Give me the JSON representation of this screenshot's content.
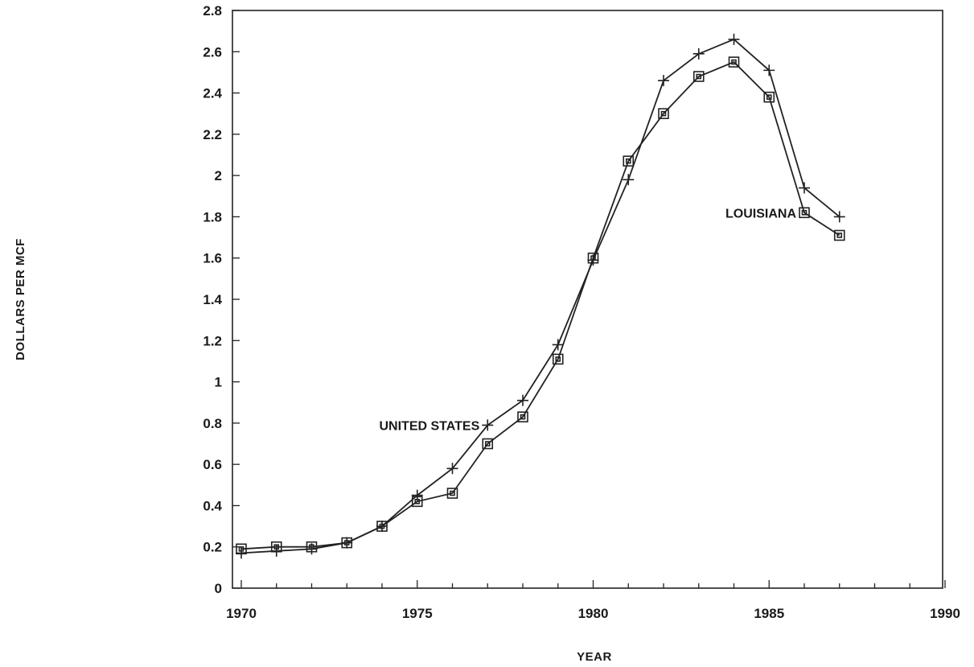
{
  "chart_data": {
    "type": "line",
    "title": "",
    "xlabel": "YEAR",
    "ylabel": "DOLLARS PER MCF",
    "xlim": [
      1970,
      1990
    ],
    "ylim": [
      0,
      2.8
    ],
    "x_ticks": [
      "1970",
      "1975",
      "1980",
      "1985",
      "1990"
    ],
    "y_ticks": [
      "0",
      "0.2",
      "0.4",
      "0.6",
      "0.8",
      "1",
      "1.2",
      "1.4",
      "1.6",
      "1.8",
      "2",
      "2.2",
      "2.4",
      "2.6",
      "2.8"
    ],
    "grid": false,
    "x": [
      1970,
      1971,
      1972,
      1973,
      1974,
      1975,
      1976,
      1977,
      1978,
      1979,
      1980,
      1981,
      1982,
      1983,
      1984,
      1985,
      1986,
      1987
    ],
    "series": [
      {
        "name": "UNITED STATES",
        "marker": "plus",
        "values": [
          0.17,
          0.18,
          0.19,
          0.22,
          0.3,
          0.45,
          0.58,
          0.79,
          0.91,
          1.18,
          1.59,
          1.98,
          2.46,
          2.59,
          2.66,
          2.51,
          1.94,
          1.8
        ]
      },
      {
        "name": "LOUISIANA",
        "marker": "square",
        "values": [
          0.19,
          0.2,
          0.2,
          0.22,
          0.3,
          0.42,
          0.46,
          0.7,
          0.83,
          1.11,
          1.6,
          2.07,
          2.3,
          2.48,
          2.55,
          2.38,
          1.82,
          1.71
        ]
      }
    ],
    "annotations": [
      {
        "text": "UNITED STATES",
        "series": "UNITED STATES",
        "x": 1977,
        "y": 0.79,
        "align": "left"
      },
      {
        "text": "LOUISIANA",
        "series": "LOUISIANA",
        "x": 1986,
        "y": 1.82,
        "align": "left"
      }
    ]
  }
}
